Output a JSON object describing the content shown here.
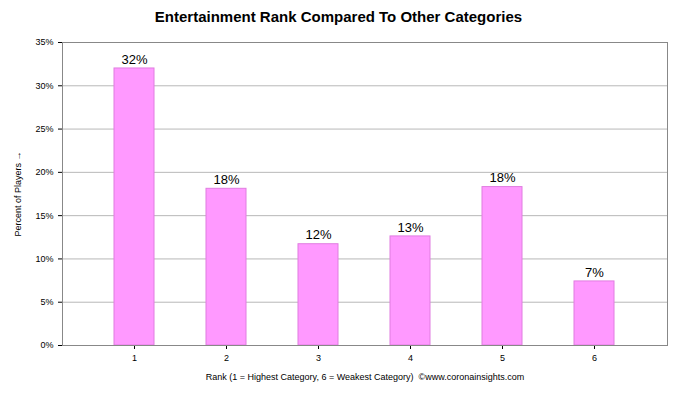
{
  "chart_data": {
    "type": "bar",
    "title": "Entertainment Rank Compared To Other Categories",
    "x_label": "Rank (1 = Highest Category, 6 = Weakest Category)  ©www.coronainsights.com",
    "y_label": "Percent of Players",
    "categories": [
      "1",
      "2",
      "3",
      "4",
      "5",
      "6"
    ],
    "values": [
      32,
      18.1,
      11.7,
      12.6,
      18.3,
      7.4
    ],
    "value_labels": [
      "32%",
      "18%",
      "12%",
      "13%",
      "18%",
      "7%"
    ],
    "color": "#ff99ff",
    "ylim": [
      0,
      35
    ],
    "yticks": [
      {
        "value": 0,
        "label": "0%"
      },
      {
        "value": 5,
        "label": "5%"
      },
      {
        "value": 10,
        "label": "10%"
      },
      {
        "value": 15,
        "label": "15%"
      },
      {
        "value": 20,
        "label": "20%"
      },
      {
        "value": 25,
        "label": "25%"
      },
      {
        "value": 30,
        "label": "30%"
      },
      {
        "value": 35,
        "label": "35%"
      }
    ],
    "grid": true,
    "data_labels": true
  }
}
